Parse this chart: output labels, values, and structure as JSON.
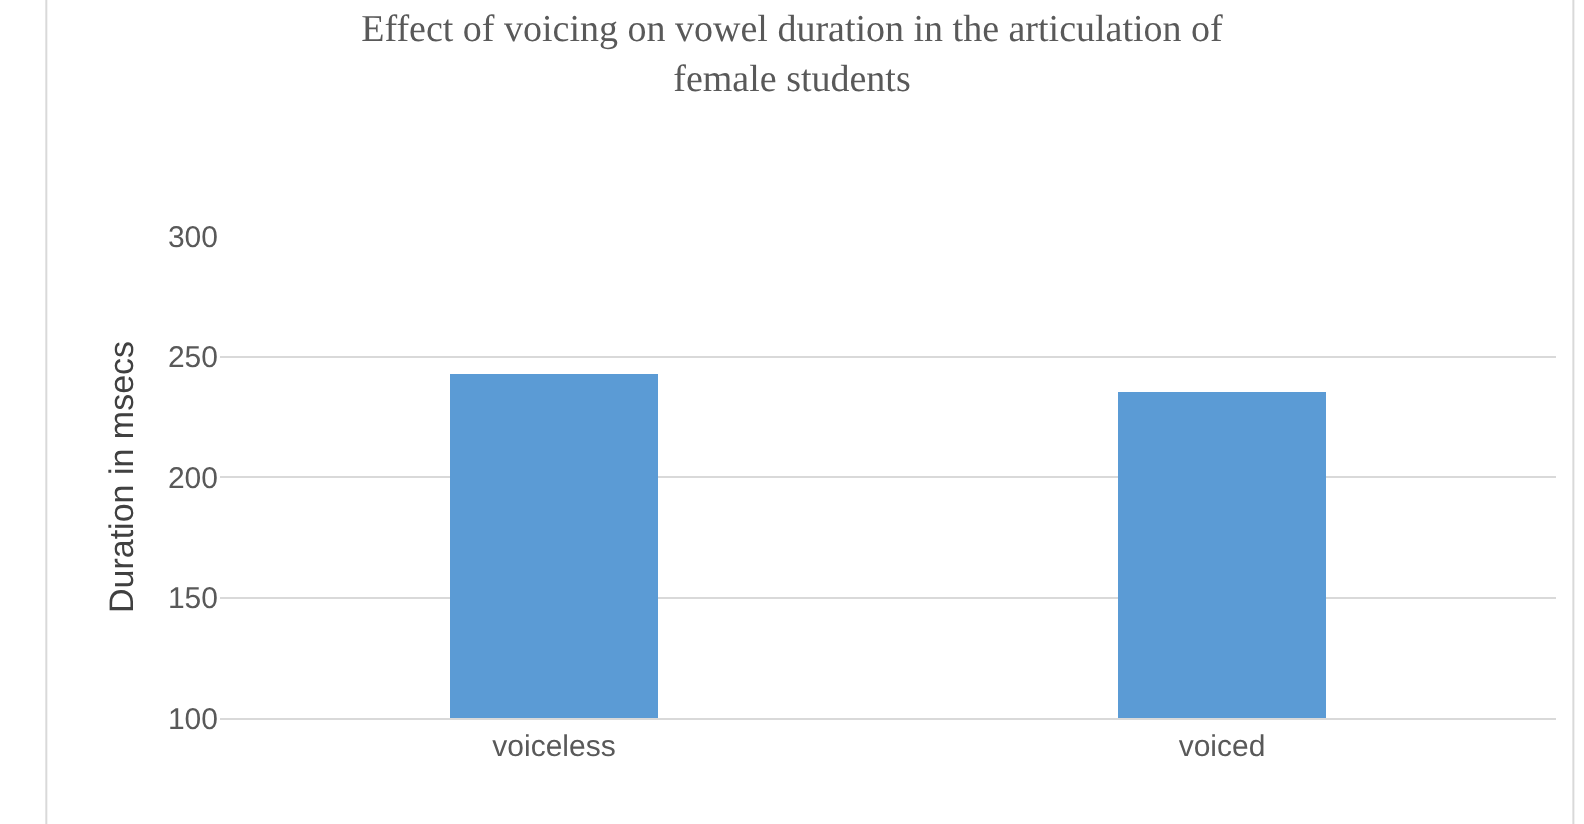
{
  "chart_data": {
    "type": "bar",
    "title": "Effect of voicing on vowel duration in the articulation of female students",
    "ylabel": "Duration in msecs",
    "categories": [
      "voiceless",
      "voiced"
    ],
    "values": [
      243,
      235
    ],
    "color": "#5b9bd5",
    "ylim": [
      100,
      300
    ],
    "yticks": [
      100,
      150,
      200,
      250,
      300
    ],
    "grid": "y"
  }
}
